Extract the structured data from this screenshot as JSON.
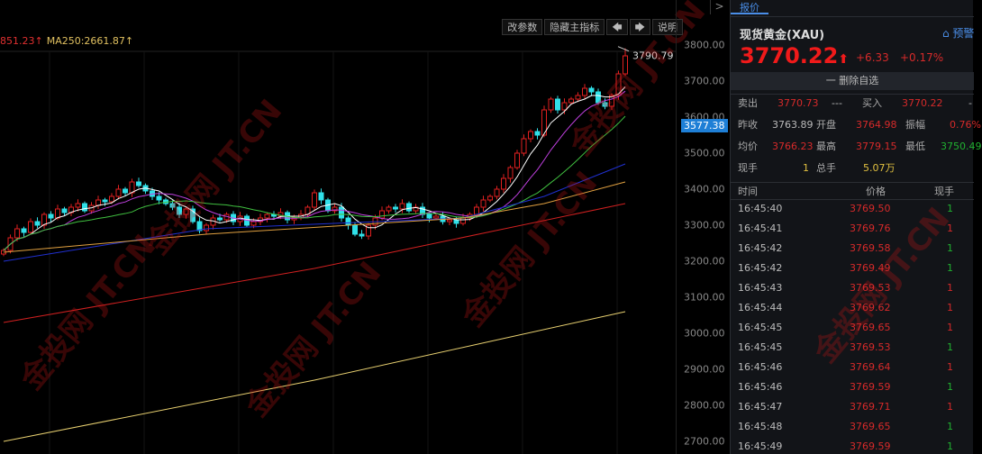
{
  "toolbar": {
    "buttons": [
      "改参数",
      "隐藏主指标",
      "🡄",
      "🡆",
      "说明"
    ]
  },
  "legend": {
    "ma_partial": "851.23↑",
    "ma250": "MA250:2661.87↑"
  },
  "watermark": "金投网 JT.CN",
  "side_toggle": ">",
  "chart_data": {
    "type": "candlestick",
    "y_ticks": [
      3800,
      3700,
      3600,
      3500,
      3400,
      3300,
      3200,
      3100,
      3000,
      2900,
      2800,
      2700
    ],
    "y_tick_labels": [
      "3800.00",
      "3700.00",
      "3600.00",
      "3500.00",
      "3400.00",
      "3300.00",
      "3200.00",
      "3100.00",
      "3000.00",
      "2900.00",
      "2800.00",
      "2700.00"
    ],
    "ylim": [
      2675,
      3825
    ],
    "closes": [
      3230,
      3265,
      3290,
      3280,
      3310,
      3300,
      3330,
      3320,
      3345,
      3335,
      3350,
      3360,
      3340,
      3355,
      3370,
      3365,
      3380,
      3400,
      3390,
      3420,
      3410,
      3395,
      3380,
      3370,
      3360,
      3350,
      3330,
      3345,
      3310,
      3285,
      3300,
      3320,
      3315,
      3330,
      3310,
      3325,
      3300,
      3310,
      3320,
      3330,
      3325,
      3335,
      3315,
      3320,
      3330,
      3350,
      3390,
      3370,
      3340,
      3350,
      3320,
      3300,
      3275,
      3270,
      3300,
      3320,
      3340,
      3350,
      3345,
      3360,
      3340,
      3350,
      3330,
      3320,
      3325,
      3310,
      3315,
      3305,
      3320,
      3330,
      3350,
      3370,
      3380,
      3400,
      3430,
      3460,
      3500,
      3540,
      3560,
      3550,
      3620,
      3650,
      3620,
      3640,
      3650,
      3660,
      3680,
      3670,
      3640,
      3630,
      3660,
      3720,
      3770
    ],
    "high_label": "3790.79",
    "high_value": 3790.79,
    "current_price_label": "3577.38",
    "current_price": 3577.38,
    "up_color": "#e02020",
    "down_color": "#30e0e8",
    "ma_lines": [
      {
        "color": "#ffffff",
        "period": 5
      },
      {
        "color": "#c040e0",
        "period": 10
      },
      {
        "color": "#40c040",
        "period": 20
      },
      {
        "color": "#2030d0",
        "points": [
          [
            0,
            3200
          ],
          [
            30,
            3290
          ],
          [
            68,
            3320
          ],
          [
            80,
            3380
          ],
          [
            92,
            3470
          ]
        ]
      },
      {
        "color": "#e0a040",
        "points": [
          [
            0,
            3225
          ],
          [
            30,
            3275
          ],
          [
            68,
            3320
          ],
          [
            80,
            3360
          ],
          [
            92,
            3420
          ]
        ]
      },
      {
        "color": "#d02020",
        "points": [
          [
            0,
            3030
          ],
          [
            46,
            3180
          ],
          [
            92,
            3360
          ]
        ]
      },
      {
        "color": "#e8d070",
        "points": [
          [
            0,
            2700
          ],
          [
            46,
            2870
          ],
          [
            92,
            3060
          ]
        ]
      }
    ]
  },
  "panel": {
    "tab": "报价",
    "name": "现货黄金(XAU)",
    "alert": "⌂ 预警",
    "price": "3770.22",
    "arrow": "⬆",
    "change": "+6.33",
    "change_pct": "+0.17%",
    "delete_label": "一  删除自选",
    "sell_label": "卖出",
    "sell": "3770.73",
    "sell_vol": "---",
    "buy_label": "买入",
    "buy": "3770.22",
    "buy_vol": "-",
    "prev_close_label": "昨收",
    "prev_close": "3763.89",
    "open_label": "开盘",
    "open": "3764.98",
    "amp_label": "振幅",
    "amp": "0.76%",
    "avg_label": "均价",
    "avg": "3766.23",
    "high_label": "最高",
    "high": "3779.15",
    "low_label": "最低",
    "low": "3750.49",
    "cur_vol_label": "现手",
    "cur_vol": "1",
    "total_vol_label": "总手",
    "total_vol": "5.07万",
    "ticks_header": {
      "time": "时间",
      "price": "价格",
      "vol": "现手"
    },
    "ticks": [
      {
        "time": "16:45:40",
        "price": "3769.50",
        "vol": "1",
        "dir": "down"
      },
      {
        "time": "16:45:41",
        "price": "3769.76",
        "vol": "1",
        "dir": "up"
      },
      {
        "time": "16:45:42",
        "price": "3769.58",
        "vol": "1",
        "dir": "down"
      },
      {
        "time": "16:45:42",
        "price": "3769.49",
        "vol": "1",
        "dir": "down"
      },
      {
        "time": "16:45:43",
        "price": "3769.53",
        "vol": "1",
        "dir": "up"
      },
      {
        "time": "16:45:44",
        "price": "3769.62",
        "vol": "1",
        "dir": "up"
      },
      {
        "time": "16:45:45",
        "price": "3769.65",
        "vol": "1",
        "dir": "up"
      },
      {
        "time": "16:45:45",
        "price": "3769.53",
        "vol": "1",
        "dir": "down"
      },
      {
        "time": "16:45:46",
        "price": "3769.64",
        "vol": "1",
        "dir": "up"
      },
      {
        "time": "16:45:46",
        "price": "3769.59",
        "vol": "1",
        "dir": "down"
      },
      {
        "time": "16:45:47",
        "price": "3769.71",
        "vol": "1",
        "dir": "up"
      },
      {
        "time": "16:45:48",
        "price": "3769.65",
        "vol": "1",
        "dir": "down"
      },
      {
        "time": "16:45:49",
        "price": "3769.59",
        "vol": "1",
        "dir": "down"
      }
    ]
  }
}
